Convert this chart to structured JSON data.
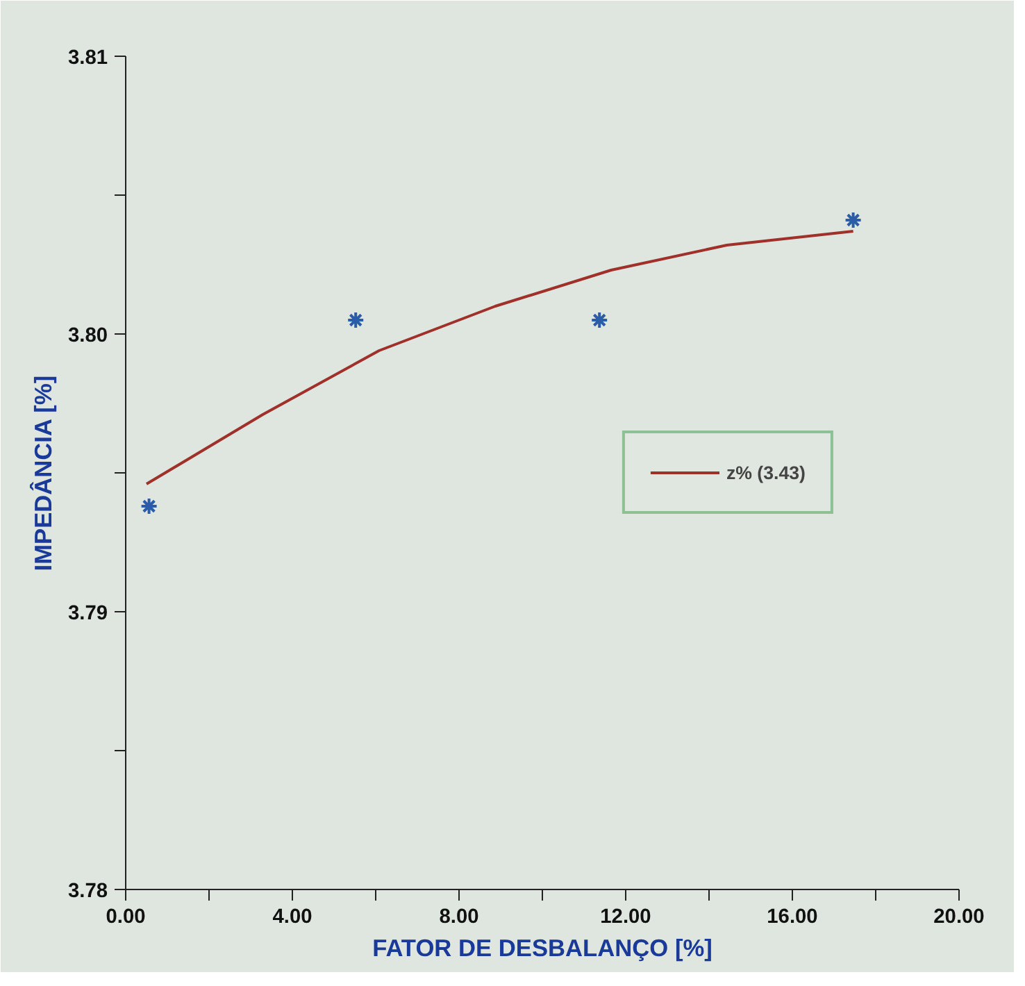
{
  "chart_data": {
    "type": "scatter",
    "xlabel": "FATOR DE DESBALANÇO [%]",
    "ylabel": "IMPEDÂNCIA [%]",
    "xlim": [
      0,
      20
    ],
    "ylim": [
      3.78,
      3.81
    ],
    "xticks": [
      {
        "value": 0,
        "label": "0.00"
      },
      {
        "value": 2,
        "label": null
      },
      {
        "value": 4,
        "label": "4.00"
      },
      {
        "value": 6,
        "label": null
      },
      {
        "value": 8,
        "label": "8.00"
      },
      {
        "value": 10,
        "label": null
      },
      {
        "value": 12,
        "label": "12.00"
      },
      {
        "value": 14,
        "label": null
      },
      {
        "value": 16,
        "label": "16.00"
      },
      {
        "value": 18,
        "label": null
      },
      {
        "value": 20,
        "label": "20.00"
      }
    ],
    "yticks": [
      {
        "value": 3.78,
        "label": "3.78"
      },
      {
        "value": 3.785,
        "label": null
      },
      {
        "value": 3.79,
        "label": "3.79"
      },
      {
        "value": 3.795,
        "label": null
      },
      {
        "value": 3.8,
        "label": "3.80"
      },
      {
        "value": 3.805,
        "label": null
      },
      {
        "value": 3.81,
        "label": "3.81"
      }
    ],
    "grid": false,
    "legend": "right",
    "series": [
      {
        "marker": "cross",
        "color": "#2a5ca8",
        "x": [
          0.56,
          5.52,
          11.37,
          17.46
        ],
        "values": [
          3.7938,
          3.8005,
          3.8005,
          3.8041
        ]
      },
      {
        "type": "line",
        "name": "z% (3.43)",
        "color": "#a0302a",
        "marker": "none",
        "line_style": "solid",
        "x": [
          0.5,
          3.29,
          6.08,
          8.87,
          11.65,
          14.43,
          17.46
        ],
        "values": [
          3.7946,
          3.7971,
          3.7994,
          3.801,
          3.8023,
          3.8032,
          3.8037
        ]
      }
    ]
  }
}
